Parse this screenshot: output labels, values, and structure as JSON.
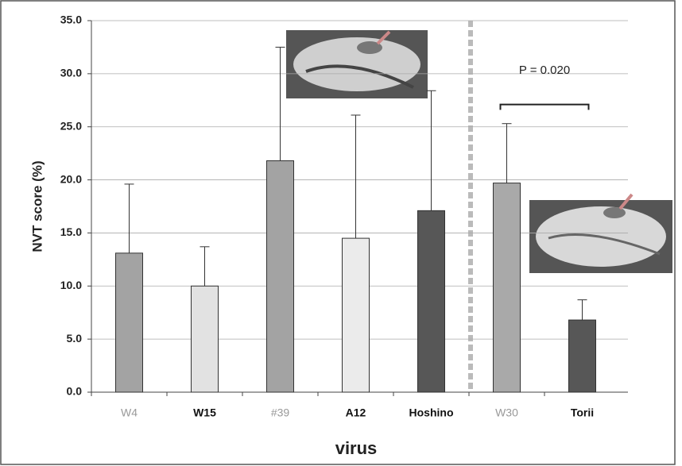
{
  "chart_data": {
    "type": "bar",
    "y_label": "NVT score (%)",
    "x_label": "virus",
    "annotation": "P = 0.020",
    "categories": [
      "W4",
      "W15",
      "#39",
      "A12",
      "Hoshino",
      "W30",
      "Torii"
    ],
    "values": [
      13.1,
      10.0,
      21.8,
      14.5,
      17.1,
      19.7,
      6.8
    ],
    "errors": [
      6.5,
      3.7,
      10.7,
      11.6,
      11.3,
      5.6,
      1.9
    ],
    "colors": [
      "#a3a3a3",
      "#e2e2e2",
      "#a3a3a3",
      "#ebebeb",
      "#575757",
      "#a9a9a9",
      "#575757"
    ],
    "ylim": [
      0,
      35
    ],
    "yticks": [
      {
        "value": 0,
        "label": "0.0"
      },
      {
        "value": 5,
        "label": "5.0"
      },
      {
        "value": 10,
        "label": "10.0"
      },
      {
        "value": 15,
        "label": "15.0"
      },
      {
        "value": 20,
        "label": "20.0"
      },
      {
        "value": 25,
        "label": "25.0"
      },
      {
        "value": 30,
        "label": "30.0"
      },
      {
        "value": 35,
        "label": "35.0"
      }
    ],
    "grid": true
  }
}
